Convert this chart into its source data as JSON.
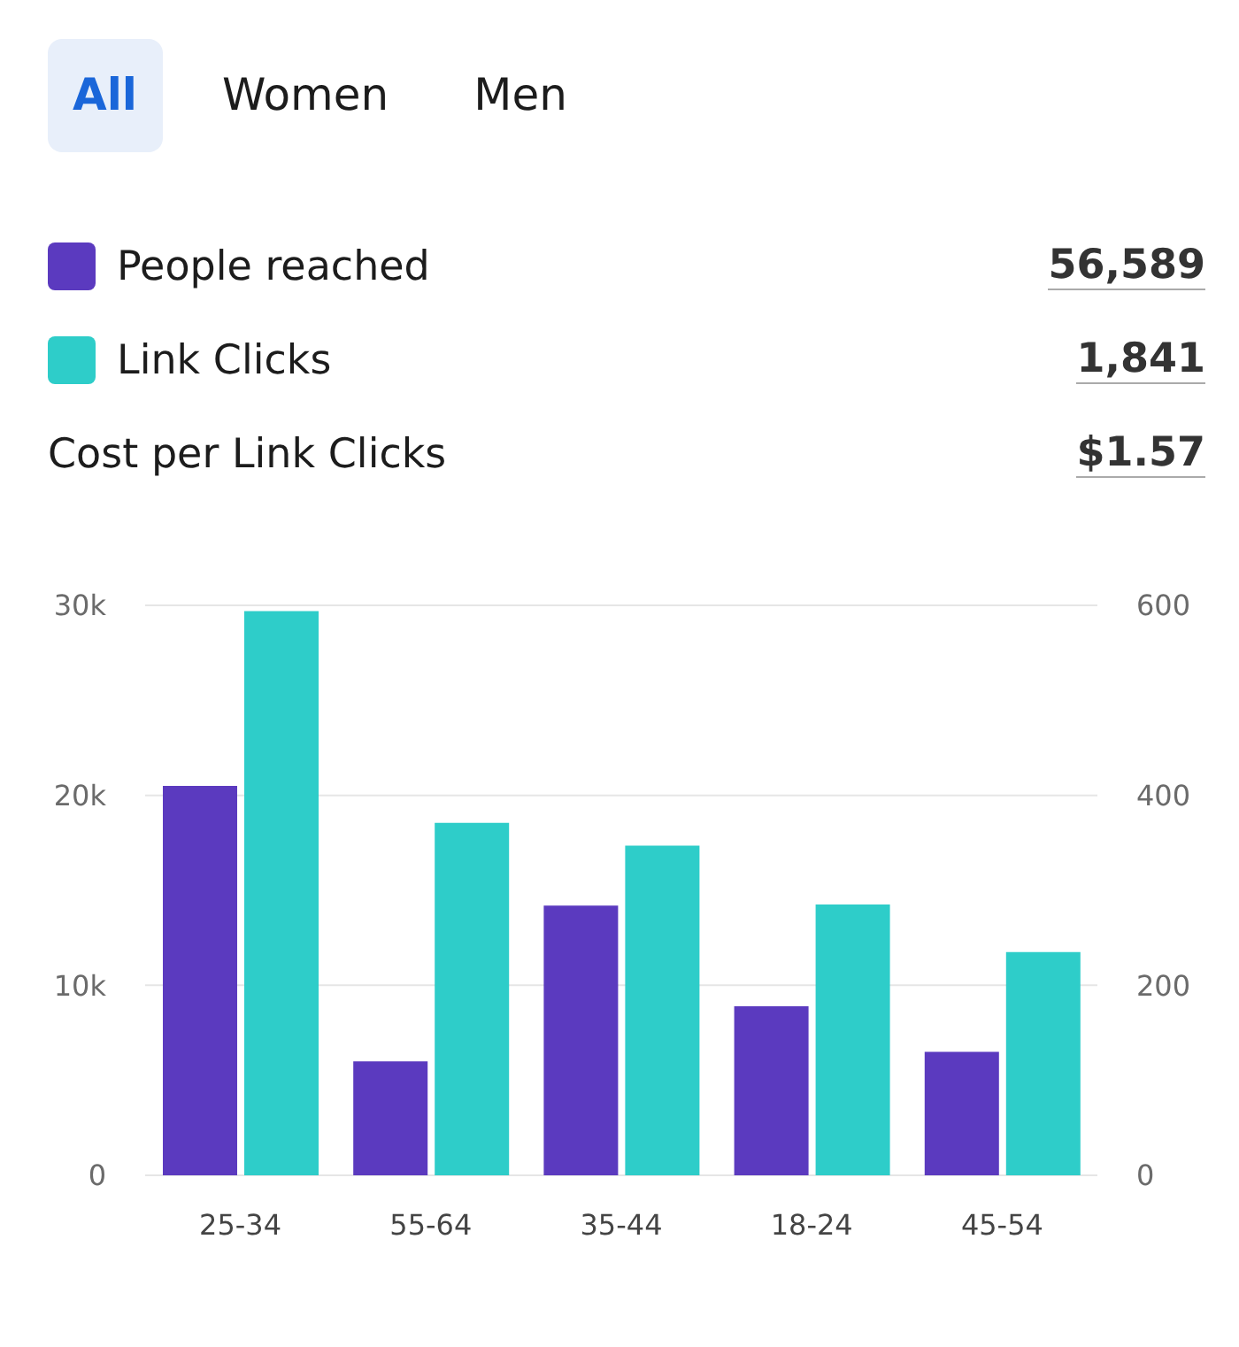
{
  "chart_data": {
    "type": "bar",
    "categories": [
      "25-34",
      "55-64",
      "35-44",
      "18-24",
      "45-54"
    ],
    "series": [
      {
        "name": "People reached",
        "color": "#5b3abf",
        "values": [
          20500,
          6000,
          14200,
          8900,
          6500
        ]
      },
      {
        "name": "Link Clicks",
        "color": "#2ecdc9",
        "values": [
          594,
          371,
          347,
          285,
          235
        ],
        "axis": "y2"
      }
    ],
    "ylim": [
      0,
      30000
    ],
    "yticks": [
      0,
      {
        "value": 10000,
        "label": "10k"
      },
      {
        "value": 20000,
        "label": "20k"
      },
      {
        "value": 30000,
        "label": "30k"
      }
    ],
    "y2lim": [
      0,
      600
    ],
    "y2ticks": [
      0,
      200,
      400,
      600
    ],
    "grid": "y",
    "legend": "top left",
    "annotations": [
      "All",
      "Women",
      "Men",
      "56,589",
      "1,841",
      "Cost per Link Clicks",
      "$1.57"
    ]
  }
}
